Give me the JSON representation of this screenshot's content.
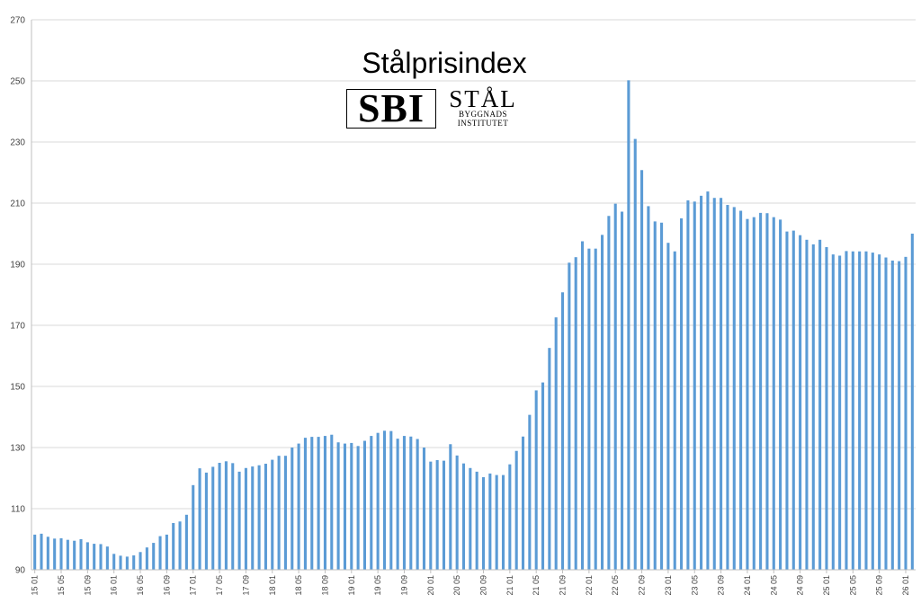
{
  "logo": {
    "sbi": "SBI",
    "stal": "STÅL",
    "line1": "BYGGNADS",
    "line2": "INSTITUTET"
  },
  "chart_data": {
    "type": "bar",
    "title": "Stålprisindex",
    "xlabel": "",
    "ylabel": "",
    "ylim": [
      90,
      270
    ],
    "yticks": [
      90,
      110,
      130,
      150,
      170,
      190,
      210,
      230,
      250,
      270
    ],
    "grid": true,
    "bar_color": "#5B9BD5",
    "x_tick_labels": [
      "15 01",
      "15 05",
      "15 09",
      "16 01",
      "16 05",
      "16 09",
      "17 01",
      "17 05",
      "17 09",
      "18 01",
      "18 05",
      "18 09",
      "19 01",
      "19 05",
      "19 09",
      "20 01",
      "20 05",
      "20 09",
      "21 01",
      "21 05",
      "21 09",
      "22 01",
      "22 05",
      "22 09",
      "23 01",
      "23 05",
      "23 09",
      "24 01",
      "24 05",
      "24 09",
      "25 01",
      "25 05",
      "25 09",
      "26 01"
    ],
    "x_tick_every": 4,
    "values": [
      101.5,
      101.8,
      100.8,
      100.2,
      100.3,
      99.8,
      99.5,
      100.0,
      99.0,
      98.5,
      98.4,
      97.6,
      95.2,
      94.6,
      94.3,
      94.7,
      95.8,
      97.3,
      98.8,
      101.0,
      101.5,
      105.3,
      105.8,
      108.0,
      117.7,
      123.2,
      121.8,
      123.7,
      125.0,
      125.5,
      124.9,
      122.1,
      123.3,
      123.8,
      124.2,
      124.7,
      126.0,
      127.3,
      127.3,
      130.0,
      131.3,
      133.2,
      133.5,
      133.5,
      133.8,
      134.2,
      131.7,
      131.3,
      131.5,
      130.5,
      132.2,
      133.8,
      134.8,
      135.5,
      135.4,
      132.9,
      133.8,
      133.6,
      132.8,
      130.0,
      125.4,
      125.9,
      125.7,
      131.1,
      127.4,
      124.8,
      123.3,
      122.1,
      120.3,
      121.5,
      121.0,
      121.0,
      124.5,
      128.9,
      133.6,
      140.7,
      148.7,
      151.3,
      162.6,
      172.6,
      180.8,
      190.5,
      192.3,
      197.5,
      195.1,
      195.1,
      199.6,
      205.8,
      209.8,
      207.2,
      250.2,
      231.0,
      220.8,
      209.0,
      204.0,
      203.6,
      197.0,
      194.2,
      205.0,
      210.9,
      210.5,
      212.4,
      213.8,
      211.7,
      211.7,
      209.4,
      208.7,
      207.5,
      204.8,
      205.4,
      206.8,
      206.7,
      205.4,
      204.6,
      200.7,
      201.0,
      199.5,
      198.0,
      196.5,
      198.0,
      195.6,
      193.2,
      192.8,
      194.3,
      194.2,
      194.2,
      194.2,
      193.8,
      193.2,
      192.2,
      191.2,
      191.0,
      192.4,
      200.0
    ]
  }
}
